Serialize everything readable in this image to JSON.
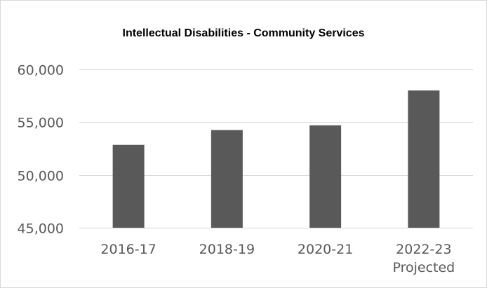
{
  "chart_data": {
    "type": "bar",
    "title": "Intellectual Disabilities - Community Services",
    "categories": [
      [
        "2016-17"
      ],
      [
        "2018-19"
      ],
      [
        "2020-21"
      ],
      [
        "2022-23",
        "Projected"
      ]
    ],
    "values": [
      52850,
      54250,
      54700,
      58000
    ],
    "ylim": [
      45000,
      60000
    ],
    "yticks": [
      {
        "value": 45000,
        "label": "45,000"
      },
      {
        "value": 50000,
        "label": "50,000"
      },
      {
        "value": 55000,
        "label": "55,000"
      },
      {
        "value": 60000,
        "label": "60,000"
      }
    ],
    "bar_color": "#595959",
    "grid_color": "#d9d9d9",
    "grid": true,
    "legend": false
  }
}
